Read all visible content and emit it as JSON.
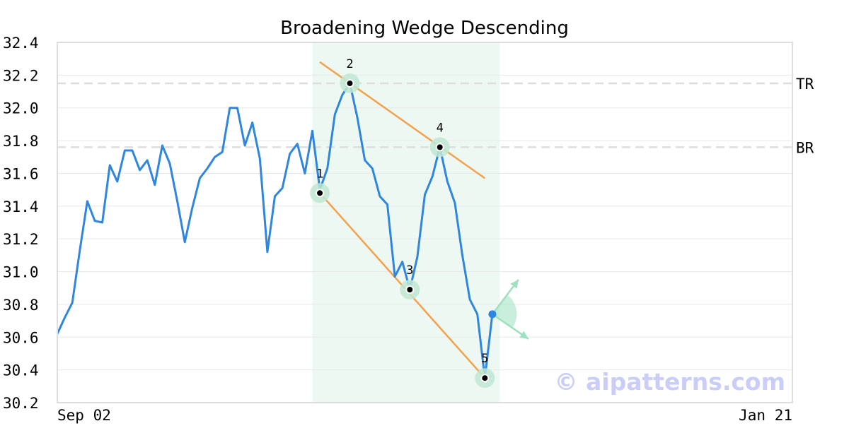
{
  "chart_data": {
    "type": "line",
    "title": "Broadening Wedge Descending",
    "x_tick_labels": [
      "Sep 02",
      "Jan 21"
    ],
    "y_ticks": [
      "30.2",
      "30.4",
      "30.6",
      "30.8",
      "31.0",
      "31.2",
      "31.4",
      "31.6",
      "31.8",
      "32.0",
      "32.2",
      "32.4"
    ],
    "ylim": [
      30.2,
      32.4
    ],
    "grid": true,
    "colors": {
      "price": "#2f86de",
      "trendline": "#f5a04a",
      "highlight": "#eef8f3",
      "point_halo": "#bfe7d2",
      "reference": "#dddddd",
      "projection": "#9fe0c0",
      "last_point": "#2f86de"
    },
    "series": [
      {
        "values": [
          30.62,
          30.72,
          30.81,
          31.13,
          31.43,
          31.31,
          31.3,
          31.65,
          31.55,
          31.74,
          31.74,
          31.62,
          31.68,
          31.53,
          31.77,
          31.66,
          31.43,
          31.18,
          31.39,
          31.57,
          31.63,
          31.7,
          31.73,
          32.0,
          32.0,
          31.77,
          31.91,
          31.69,
          31.12,
          31.46,
          31.51,
          31.72,
          31.78,
          31.6,
          31.86,
          31.5,
          31.63,
          31.96,
          32.08,
          32.15,
          31.94,
          31.68,
          31.63,
          31.46,
          31.41,
          30.97,
          31.06,
          30.89,
          31.09,
          31.47,
          31.58,
          31.76,
          31.55,
          31.42,
          31.1,
          30.83,
          30.74,
          30.35,
          30.74
        ]
      }
    ],
    "reference_lines": [
      {
        "label": "TR",
        "value": 32.15
      },
      {
        "label": "BR",
        "value": 31.76
      }
    ],
    "pattern_points": [
      {
        "label": "1",
        "index": 35,
        "value": 31.48
      },
      {
        "label": "2",
        "index": 39,
        "value": 32.15
      },
      {
        "label": "3",
        "index": 47,
        "value": 30.89
      },
      {
        "label": "4",
        "index": 51,
        "value": 31.76
      },
      {
        "label": "5",
        "index": 57,
        "value": 30.35
      }
    ],
    "trendlines": [
      {
        "from_index": 35,
        "from_value": 31.48,
        "to_index": 57,
        "to_value": 30.35
      },
      {
        "from_index": 35,
        "from_value": 32.28,
        "to_index": 57,
        "to_value": 31.57
      }
    ],
    "pattern_range_index": [
      34,
      59
    ],
    "last_point": {
      "index": 58,
      "value": 30.74
    },
    "x_domain_index": [
      0,
      98
    ]
  },
  "watermark": "© aipatterns.com"
}
